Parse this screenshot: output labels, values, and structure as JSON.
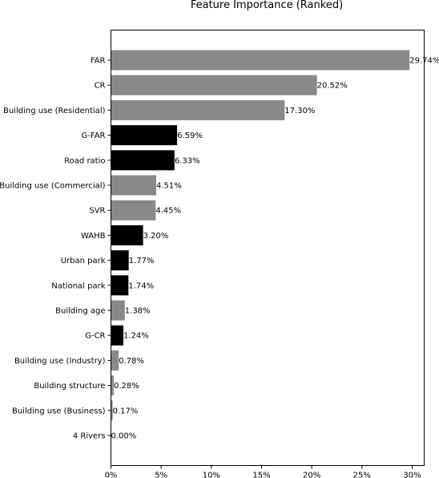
{
  "chart_data": {
    "type": "bar",
    "orientation": "horizontal",
    "title": "Feature Importance (Ranked)",
    "xlabel": "",
    "ylabel": "",
    "xlim": [
      0,
      31.2
    ],
    "x_ticks": [
      0,
      5,
      10,
      15,
      20,
      25,
      30
    ],
    "x_tick_labels": [
      "0%",
      "5%",
      "10%",
      "15%",
      "20%",
      "25%",
      "30%"
    ],
    "grid": false,
    "legend": "none",
    "colors": {
      "gray": "#898989",
      "black": "#000000"
    },
    "categories": [
      "FAR",
      "CR",
      "Building use (Residential)",
      "G-FAR",
      "Road ratio",
      "Building use (Commercial)",
      "SVR",
      "WAHB",
      "Urban park",
      "National park",
      "Building age",
      "G-CR",
      "Building use (Industry)",
      "Building structure",
      "Building use (Business)",
      "4 Rivers"
    ],
    "values": [
      29.74,
      20.52,
      17.3,
      6.59,
      6.33,
      4.51,
      4.45,
      3.2,
      1.77,
      1.74,
      1.38,
      1.24,
      0.78,
      0.28,
      0.17,
      0.0
    ],
    "value_labels": [
      "29.74%",
      "20.52%",
      "17.30%",
      "6.59%",
      "6.33%",
      "4.51%",
      "4.45%",
      "3.20%",
      "1.77%",
      "1.74%",
      "1.38%",
      "1.24%",
      "0.78%",
      "0.28%",
      "0.17%",
      "0.00%"
    ],
    "bar_colors": [
      "gray",
      "gray",
      "gray",
      "black",
      "black",
      "gray",
      "gray",
      "black",
      "black",
      "black",
      "gray",
      "black",
      "gray",
      "gray",
      "gray",
      "gray"
    ]
  }
}
